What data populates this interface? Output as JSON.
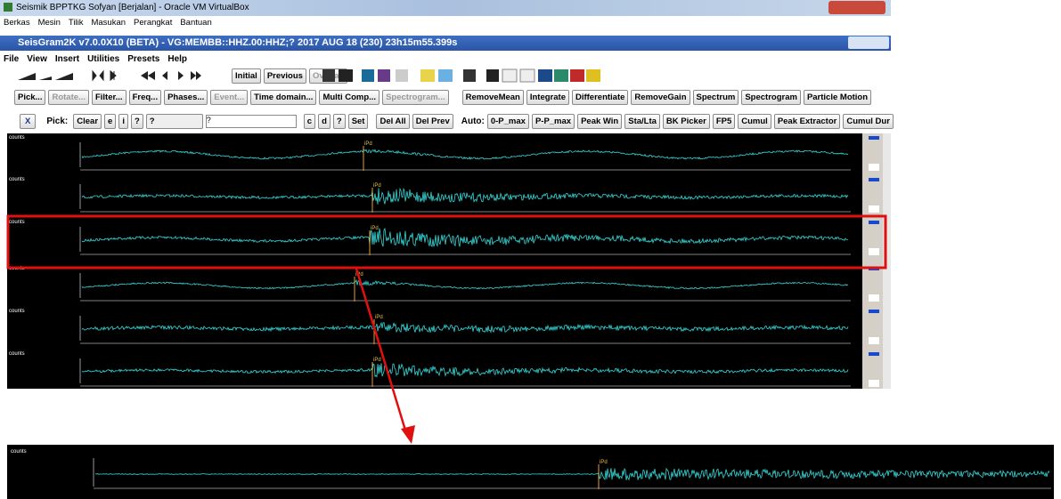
{
  "window": {
    "title": "Seismik BPPTKG Sofyan [Berjalan] - Oracle VM VirtualBox",
    "menu": [
      "Berkas",
      "Mesin",
      "Tilik",
      "Masukan",
      "Perangkat",
      "Bantuan"
    ]
  },
  "app": {
    "title": "SeisGram2K v7.0.0X10 (BETA) - VG:MEMBB::HHZ.00:HHZ;? 2017 AUG 18 (230) 23h15m55.399s",
    "menu": [
      "File",
      "View",
      "Insert",
      "Utilities",
      "Presets",
      "Help"
    ]
  },
  "toolbar": {
    "buttons": [
      "Initial",
      "Previous",
      "Overlap"
    ]
  },
  "tools": [
    "Pick...",
    "Rotate...",
    "Filter...",
    "Freq...",
    "Phases...",
    "Event...",
    "Time domain...",
    "Multi Comp...",
    "Spectrogram...",
    "RemoveMean",
    "Integrate",
    "Differentiate",
    "RemoveGain",
    "Spectrum",
    "Spectrogram",
    "Particle Motion"
  ],
  "pick": {
    "close": "X",
    "label": "Pick:",
    "buttons": [
      "Clear",
      "e",
      "i",
      "?"
    ],
    "select": "?",
    "input": "?",
    "buttons2": [
      "c",
      "d",
      "?",
      "Set",
      "Del All",
      "Del Prev"
    ],
    "auto_label": "Auto:",
    "auto": [
      "0-P_max",
      "P-P_max",
      "Peak Win",
      "Sta/Lta",
      "BK Picker",
      "FP5",
      "Cumul",
      "Peak Extractor",
      "Cumul Dur"
    ]
  },
  "traces": [
    {
      "unit": "counts",
      "phase": "iPd"
    },
    {
      "unit": "counts",
      "phase": "iPd"
    },
    {
      "unit": "counts",
      "phase": "iPd"
    },
    {
      "unit": "counts",
      "phase": "iPd"
    },
    {
      "unit": "counts",
      "phase": "iPd"
    },
    {
      "unit": "counts",
      "phase": "iPd"
    }
  ],
  "zoom": {
    "unit": "counts",
    "phase": "iPd"
  }
}
